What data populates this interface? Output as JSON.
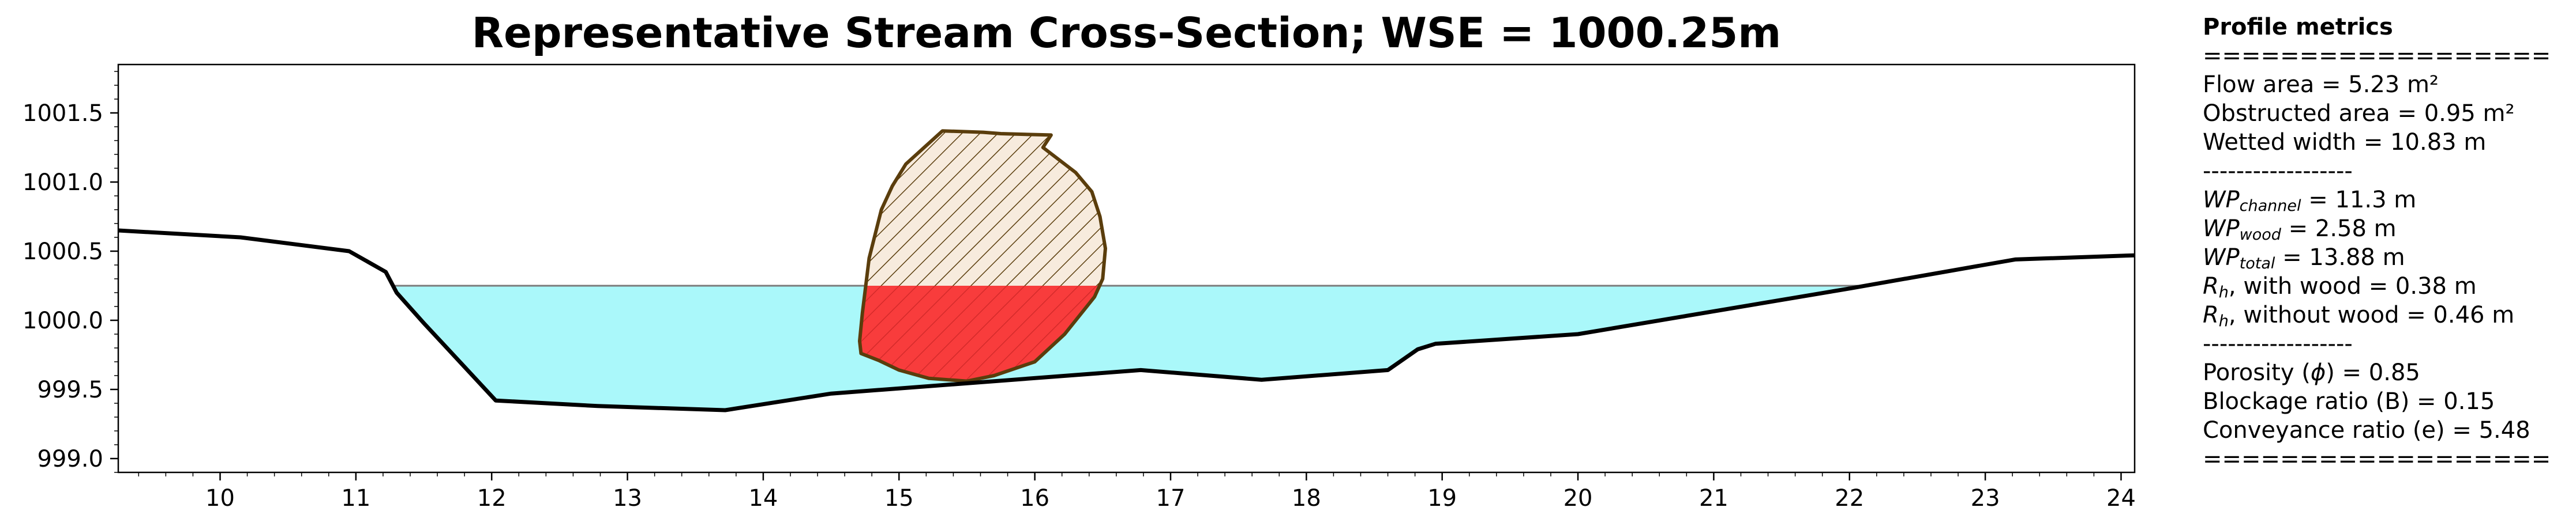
{
  "chart_data": {
    "type": "area",
    "title": "Representative Stream Cross-Section; WSE = 1000.25m",
    "xlabel": "",
    "ylabel": "",
    "xlim": [
      9.25,
      24.1
    ],
    "ylim": [
      998.9,
      1001.85
    ],
    "x_ticks": [
      10,
      11,
      12,
      13,
      14,
      15,
      16,
      17,
      18,
      19,
      20,
      21,
      22,
      23,
      24
    ],
    "y_ticks": [
      999.0,
      999.5,
      1000.0,
      1000.5,
      1001.0,
      1001.5
    ],
    "y_tick_labels": [
      "999.0",
      "999.5",
      "1000.0",
      "1000.5",
      "1001.0",
      "1001.5"
    ],
    "grid": false,
    "wse": 1000.25,
    "bed_profile": {
      "x": [
        9.25,
        10.15,
        10.95,
        11.22,
        11.3,
        11.5,
        12.03,
        12.78,
        13.72,
        14.5,
        16.78,
        17.67,
        18.6,
        18.82,
        18.95,
        20.0,
        22.0,
        23.22,
        24.1
      ],
      "y": [
        1000.65,
        1000.6,
        1000.5,
        1000.35,
        1000.2,
        999.98,
        999.42,
        999.38,
        999.35,
        999.47,
        999.64,
        999.57,
        999.64,
        999.79,
        999.83,
        999.9,
        1000.23,
        1000.44,
        1000.47
      ]
    },
    "water_fill_color": "#aaf8fa",
    "bed_line_color": "#000000",
    "wse_line_color": "#7a7a7a",
    "wood_obstruction": {
      "x": [
        15.32,
        15.62,
        15.75,
        16.12,
        16.06,
        16.3,
        16.42,
        16.48,
        16.52,
        16.5,
        16.44,
        16.22,
        16.0,
        15.7,
        15.5,
        15.22,
        15.0,
        14.85,
        14.72,
        14.71,
        14.73,
        14.78,
        14.87,
        14.95,
        15.05
      ],
      "y": [
        1001.37,
        1001.36,
        1001.35,
        1001.34,
        1001.25,
        1001.07,
        1000.93,
        1000.75,
        1000.52,
        1000.3,
        1000.17,
        999.9,
        999.7,
        999.6,
        999.56,
        999.58,
        999.64,
        999.71,
        999.76,
        999.85,
        1000.05,
        1000.45,
        1000.8,
        1000.97,
        1001.13
      ]
    },
    "wood_dry_color": "#f7ebdd",
    "wood_submerged_color": "#f83c3c",
    "wood_edge_color": "#5a3d0c"
  },
  "metrics": {
    "title": "Profile metrics",
    "separator_double": "==================",
    "separator_single": "------------------",
    "flow_area": "Flow area = 5.23 m²",
    "obstructed_area": "Obstructed area = 0.95 m²",
    "wetted_width": "Wetted width = 10.83 m",
    "wp_channel": {
      "symbol": "WP",
      "sub": "channel",
      "rest": " = 11.3 m"
    },
    "wp_wood": {
      "symbol": "WP",
      "sub": "wood",
      "rest": " = 2.58 m"
    },
    "wp_total": {
      "symbol": "WP",
      "sub": "total",
      "rest": " = 13.88 m"
    },
    "rh_with": {
      "symbol": "R",
      "sub": "h",
      "rest": ", with wood = 0.38 m"
    },
    "rh_without": {
      "symbol": "R",
      "sub": "h",
      "rest": ", without wood = 0.46 m"
    },
    "porosity": {
      "pre": "Porosity (",
      "sym": "ϕ",
      "post": ") = 0.85"
    },
    "blockage": "Blockage ratio (B) = 0.15",
    "conveyance": "Conveyance ratio (e) = 5.48"
  }
}
